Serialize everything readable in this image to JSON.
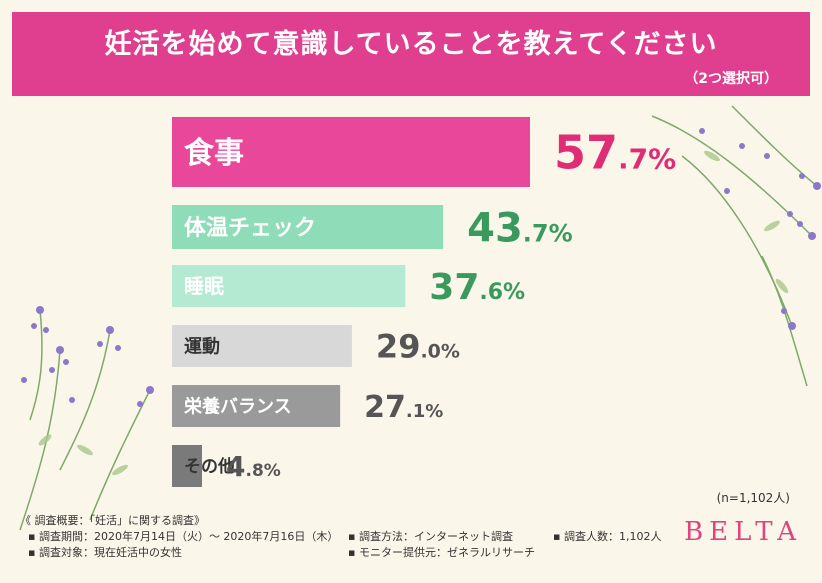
{
  "header": {
    "title": "妊活を始めて意識していることを教えてください",
    "subtitle": "（2つ選択可）"
  },
  "chart_data": {
    "type": "bar",
    "orientation": "horizontal",
    "categories": [
      "食事",
      "体温チェック",
      "睡眠",
      "運動",
      "栄養バランス",
      "その他"
    ],
    "values": [
      57.7,
      43.7,
      37.6,
      29.0,
      27.1,
      4.8
    ],
    "value_labels": [
      {
        "main": "57",
        "tail": ".7%"
      },
      {
        "main": "43",
        "tail": ".7%"
      },
      {
        "main": "37",
        "tail": ".6%"
      },
      {
        "main": "29",
        "tail": ".0%"
      },
      {
        "main": "27",
        "tail": ".1%"
      },
      {
        "main": "4",
        "tail": ".8%"
      }
    ],
    "colors": [
      "#e8479a",
      "#8fdcb8",
      "#b5ead2",
      "#d8d8d8",
      "#9a9a9a",
      "#7a7a7a"
    ],
    "label_colors": [
      "#ffffff",
      "#ffffff",
      "#ffffff",
      "#333333",
      "#ffffff",
      "#333333"
    ],
    "value_colors": [
      "#e02c74",
      "#3a9a5e",
      "#3a9a5e",
      "#555555",
      "#555555",
      "#555555"
    ]
  },
  "note": "(n=1,102人)",
  "footer": {
    "heading": "《 調査概要：「妊活」に関する調査》",
    "period": "▪ 調査期間：2020年7月14日（火）～ 2020年7月16日（木）",
    "method": "▪ 調査方法：インターネット調査",
    "count": "▪ 調査人数：1,102人",
    "target": "▪ 調査対象：現在妊活中の女性",
    "provider": "▪ モニター提供元：ゼネラルリサーチ"
  },
  "brand": "BELTA"
}
